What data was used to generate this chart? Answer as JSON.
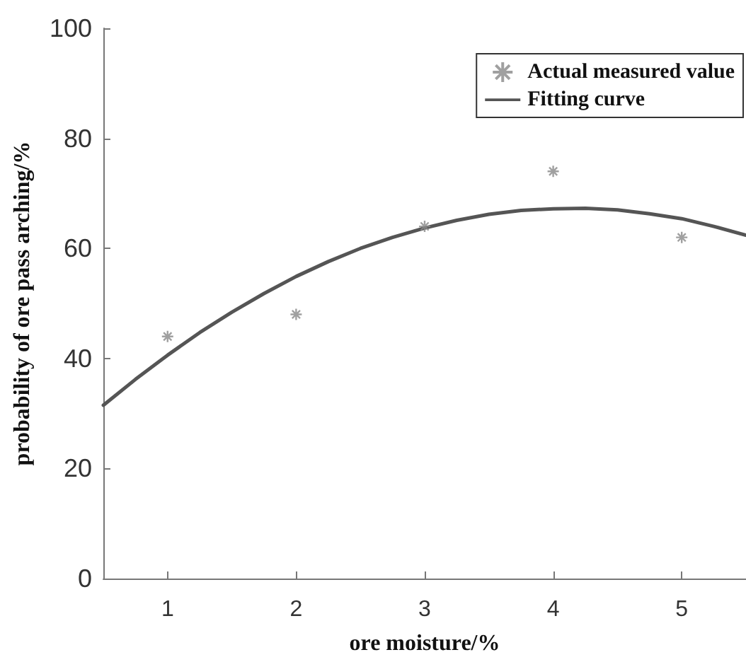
{
  "chart_data": {
    "type": "scatter",
    "xlabel": "ore moisture/%",
    "ylabel": "probability of ore pass arching/%",
    "xlim": [
      0.5,
      5.5
    ],
    "xticks": [
      1,
      2,
      3,
      4,
      5
    ],
    "ylim": [
      0,
      100
    ],
    "yticks": [
      0,
      20,
      40,
      60,
      80,
      100
    ],
    "grid": false,
    "legend": "top right",
    "series": [
      {
        "name": "Actual measured value",
        "marker": "cross",
        "color": "#888888",
        "x": [
          1,
          2,
          3,
          4,
          5
        ],
        "values": [
          44,
          48,
          64,
          74,
          62
        ]
      },
      {
        "name": "Fitting curve",
        "type": "line",
        "marker": "none",
        "line_style": "solid",
        "color": "#555555",
        "x": [
          0.5,
          0.75,
          1,
          1.25,
          1.5,
          1.75,
          2,
          2.25,
          2.5,
          2.75,
          3,
          3.25,
          3.5,
          3.75,
          4,
          4.25,
          4.5,
          4.75,
          5,
          5.25,
          5.5
        ],
        "values": [
          31.5,
          36.2,
          40.6,
          44.7,
          48.4,
          51.8,
          54.9,
          57.6,
          60.0,
          62.0,
          63.7,
          65.1,
          66.2,
          66.9,
          67.2,
          67.3,
          67.0,
          66.3,
          65.4,
          64.0,
          62.4
        ]
      }
    ]
  }
}
